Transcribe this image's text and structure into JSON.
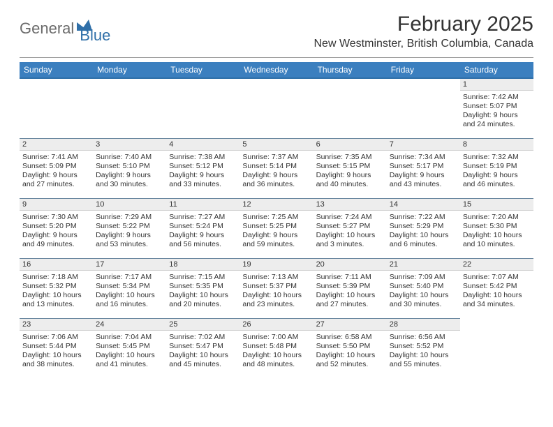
{
  "logo": {
    "part1": "General",
    "part2": "Blue"
  },
  "title": "February 2025",
  "location": "New Westminster, British Columbia, Canada",
  "colors": {
    "header_bg": "#3b7fbf",
    "header_border": "#2f6fa8",
    "daynum_bg": "#ededed",
    "row_border": "#6b88a0",
    "text": "#333333",
    "logo_gray": "#6b6b6b",
    "logo_blue": "#2f6fa8"
  },
  "daynames": [
    "Sunday",
    "Monday",
    "Tuesday",
    "Wednesday",
    "Thursday",
    "Friday",
    "Saturday"
  ],
  "weeks": [
    [
      {
        "num": "",
        "lines": []
      },
      {
        "num": "",
        "lines": []
      },
      {
        "num": "",
        "lines": []
      },
      {
        "num": "",
        "lines": []
      },
      {
        "num": "",
        "lines": []
      },
      {
        "num": "",
        "lines": []
      },
      {
        "num": "1",
        "lines": [
          "Sunrise: 7:42 AM",
          "Sunset: 5:07 PM",
          "Daylight: 9 hours",
          "and 24 minutes."
        ]
      }
    ],
    [
      {
        "num": "2",
        "lines": [
          "Sunrise: 7:41 AM",
          "Sunset: 5:09 PM",
          "Daylight: 9 hours",
          "and 27 minutes."
        ]
      },
      {
        "num": "3",
        "lines": [
          "Sunrise: 7:40 AM",
          "Sunset: 5:10 PM",
          "Daylight: 9 hours",
          "and 30 minutes."
        ]
      },
      {
        "num": "4",
        "lines": [
          "Sunrise: 7:38 AM",
          "Sunset: 5:12 PM",
          "Daylight: 9 hours",
          "and 33 minutes."
        ]
      },
      {
        "num": "5",
        "lines": [
          "Sunrise: 7:37 AM",
          "Sunset: 5:14 PM",
          "Daylight: 9 hours",
          "and 36 minutes."
        ]
      },
      {
        "num": "6",
        "lines": [
          "Sunrise: 7:35 AM",
          "Sunset: 5:15 PM",
          "Daylight: 9 hours",
          "and 40 minutes."
        ]
      },
      {
        "num": "7",
        "lines": [
          "Sunrise: 7:34 AM",
          "Sunset: 5:17 PM",
          "Daylight: 9 hours",
          "and 43 minutes."
        ]
      },
      {
        "num": "8",
        "lines": [
          "Sunrise: 7:32 AM",
          "Sunset: 5:19 PM",
          "Daylight: 9 hours",
          "and 46 minutes."
        ]
      }
    ],
    [
      {
        "num": "9",
        "lines": [
          "Sunrise: 7:30 AM",
          "Sunset: 5:20 PM",
          "Daylight: 9 hours",
          "and 49 minutes."
        ]
      },
      {
        "num": "10",
        "lines": [
          "Sunrise: 7:29 AM",
          "Sunset: 5:22 PM",
          "Daylight: 9 hours",
          "and 53 minutes."
        ]
      },
      {
        "num": "11",
        "lines": [
          "Sunrise: 7:27 AM",
          "Sunset: 5:24 PM",
          "Daylight: 9 hours",
          "and 56 minutes."
        ]
      },
      {
        "num": "12",
        "lines": [
          "Sunrise: 7:25 AM",
          "Sunset: 5:25 PM",
          "Daylight: 9 hours",
          "and 59 minutes."
        ]
      },
      {
        "num": "13",
        "lines": [
          "Sunrise: 7:24 AM",
          "Sunset: 5:27 PM",
          "Daylight: 10 hours",
          "and 3 minutes."
        ]
      },
      {
        "num": "14",
        "lines": [
          "Sunrise: 7:22 AM",
          "Sunset: 5:29 PM",
          "Daylight: 10 hours",
          "and 6 minutes."
        ]
      },
      {
        "num": "15",
        "lines": [
          "Sunrise: 7:20 AM",
          "Sunset: 5:30 PM",
          "Daylight: 10 hours",
          "and 10 minutes."
        ]
      }
    ],
    [
      {
        "num": "16",
        "lines": [
          "Sunrise: 7:18 AM",
          "Sunset: 5:32 PM",
          "Daylight: 10 hours",
          "and 13 minutes."
        ]
      },
      {
        "num": "17",
        "lines": [
          "Sunrise: 7:17 AM",
          "Sunset: 5:34 PM",
          "Daylight: 10 hours",
          "and 16 minutes."
        ]
      },
      {
        "num": "18",
        "lines": [
          "Sunrise: 7:15 AM",
          "Sunset: 5:35 PM",
          "Daylight: 10 hours",
          "and 20 minutes."
        ]
      },
      {
        "num": "19",
        "lines": [
          "Sunrise: 7:13 AM",
          "Sunset: 5:37 PM",
          "Daylight: 10 hours",
          "and 23 minutes."
        ]
      },
      {
        "num": "20",
        "lines": [
          "Sunrise: 7:11 AM",
          "Sunset: 5:39 PM",
          "Daylight: 10 hours",
          "and 27 minutes."
        ]
      },
      {
        "num": "21",
        "lines": [
          "Sunrise: 7:09 AM",
          "Sunset: 5:40 PM",
          "Daylight: 10 hours",
          "and 30 minutes."
        ]
      },
      {
        "num": "22",
        "lines": [
          "Sunrise: 7:07 AM",
          "Sunset: 5:42 PM",
          "Daylight: 10 hours",
          "and 34 minutes."
        ]
      }
    ],
    [
      {
        "num": "23",
        "lines": [
          "Sunrise: 7:06 AM",
          "Sunset: 5:44 PM",
          "Daylight: 10 hours",
          "and 38 minutes."
        ]
      },
      {
        "num": "24",
        "lines": [
          "Sunrise: 7:04 AM",
          "Sunset: 5:45 PM",
          "Daylight: 10 hours",
          "and 41 minutes."
        ]
      },
      {
        "num": "25",
        "lines": [
          "Sunrise: 7:02 AM",
          "Sunset: 5:47 PM",
          "Daylight: 10 hours",
          "and 45 minutes."
        ]
      },
      {
        "num": "26",
        "lines": [
          "Sunrise: 7:00 AM",
          "Sunset: 5:48 PM",
          "Daylight: 10 hours",
          "and 48 minutes."
        ]
      },
      {
        "num": "27",
        "lines": [
          "Sunrise: 6:58 AM",
          "Sunset: 5:50 PM",
          "Daylight: 10 hours",
          "and 52 minutes."
        ]
      },
      {
        "num": "28",
        "lines": [
          "Sunrise: 6:56 AM",
          "Sunset: 5:52 PM",
          "Daylight: 10 hours",
          "and 55 minutes."
        ]
      },
      {
        "num": "",
        "lines": []
      }
    ]
  ]
}
